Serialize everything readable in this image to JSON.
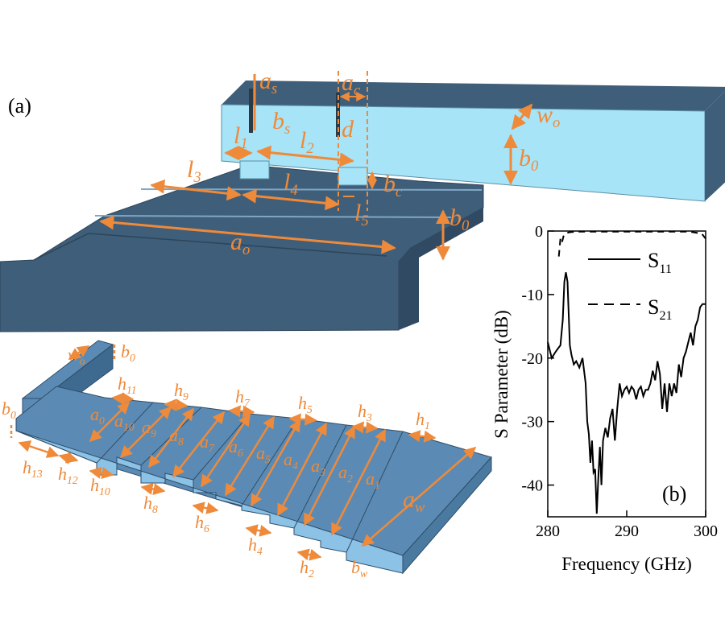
{
  "panels": {
    "a_label": "(a)",
    "b_label": "(b)"
  },
  "colors": {
    "dark_block": "#3f5e7a",
    "light_block": "#a7e4f7",
    "mid_block": "#5b8bb4",
    "dimension": "#ee8a3a"
  },
  "upper_labels": [
    {
      "base": "a",
      "sub": "s"
    },
    {
      "base": "b",
      "sub": "s"
    },
    {
      "base": "a",
      "sub": "c"
    },
    {
      "base": "w",
      "sub": "o"
    },
    {
      "base": "b",
      "sub": "0"
    },
    {
      "base": "d",
      "sub": ""
    },
    {
      "base": "l",
      "sub": "1"
    },
    {
      "base": "l",
      "sub": "2"
    },
    {
      "base": "l",
      "sub": "3"
    },
    {
      "base": "l",
      "sub": "4"
    },
    {
      "base": "l",
      "sub": "5"
    },
    {
      "base": "b",
      "sub": "c"
    },
    {
      "base": "b",
      "sub": "0"
    },
    {
      "base": "a",
      "sub": "o"
    }
  ],
  "lower_labels": [
    {
      "base": "w",
      "sub": "o"
    },
    {
      "base": "b",
      "sub": "0"
    },
    {
      "base": "b",
      "sub": "0"
    },
    {
      "base": "h",
      "sub": "11"
    },
    {
      "base": "h",
      "sub": "9"
    },
    {
      "base": "h",
      "sub": "7"
    },
    {
      "base": "h",
      "sub": "5"
    },
    {
      "base": "h",
      "sub": "3"
    },
    {
      "base": "h",
      "sub": "1"
    },
    {
      "base": "a",
      "sub": "0"
    },
    {
      "base": "a",
      "sub": "10"
    },
    {
      "base": "a",
      "sub": "9"
    },
    {
      "base": "a",
      "sub": "8"
    },
    {
      "base": "a",
      "sub": "7"
    },
    {
      "base": "a",
      "sub": "6"
    },
    {
      "base": "a",
      "sub": "5"
    },
    {
      "base": "a",
      "sub": "4"
    },
    {
      "base": "a",
      "sub": "3"
    },
    {
      "base": "a",
      "sub": "2"
    },
    {
      "base": "a",
      "sub": "1"
    },
    {
      "base": "a",
      "sub": "w"
    },
    {
      "base": "h",
      "sub": "13"
    },
    {
      "base": "h",
      "sub": "12"
    },
    {
      "base": "h",
      "sub": "10"
    },
    {
      "base": "h",
      "sub": "8"
    },
    {
      "base": "h",
      "sub": "6"
    },
    {
      "base": "h",
      "sub": "4"
    },
    {
      "base": "h",
      "sub": "2"
    },
    {
      "base": "b",
      "sub": "w"
    }
  ],
  "chart_data": {
    "type": "line",
    "xlabel": "Frequency (GHz)",
    "ylabel": "S Parameter (dB)",
    "xlim": [
      280,
      300
    ],
    "ylim": [
      -45,
      0
    ],
    "xticks": [
      "280",
      "290",
      "300"
    ],
    "yticks": [
      "0",
      "-10",
      "-20",
      "-30",
      "-40"
    ],
    "legend_position": "top-right",
    "series": [
      {
        "name": "S11",
        "name_base": "S",
        "name_sub": "11",
        "style": "solid",
        "x": [
          280,
          280.5,
          281,
          281.3,
          281.6,
          281.9,
          282.1,
          282.3,
          282.5,
          282.8,
          283.0,
          283.3,
          283.6,
          284.0,
          284.4,
          284.8,
          285.0,
          285.2,
          285.4,
          285.6,
          285.8,
          286.0,
          286.2,
          286.4,
          286.6,
          286.8,
          287.0,
          287.3,
          287.6,
          287.9,
          288.2,
          288.5,
          288.8,
          289.1,
          289.4,
          289.7,
          290.0,
          290.3,
          290.6,
          290.9,
          291.2,
          291.5,
          291.8,
          292.1,
          292.4,
          292.7,
          293.0,
          293.3,
          293.6,
          293.9,
          294.2,
          294.5,
          294.8,
          295.1,
          295.4,
          295.7,
          296.0,
          296.3,
          296.6,
          296.9,
          297.2,
          297.5,
          297.8,
          298.1,
          298.4,
          298.7,
          299.0,
          299.3,
          299.6,
          300
        ],
        "y": [
          -17.5,
          -20,
          -19,
          -18.5,
          -18,
          -14,
          -8,
          -6.5,
          -8,
          -18,
          -19.5,
          -21,
          -20.5,
          -21.5,
          -20,
          -24,
          -30,
          -32,
          -36.5,
          -33,
          -38,
          -37.5,
          -44.5,
          -39,
          -34,
          -40,
          -33,
          -31,
          -32.5,
          -29.5,
          -28,
          -33,
          -28,
          -24,
          -26,
          -25,
          -24.5,
          -25.5,
          -24.5,
          -25,
          -26.5,
          -25,
          -24.5,
          -26,
          -25,
          -25,
          -24,
          -22,
          -23.5,
          -20.5,
          -22.5,
          -28,
          -24,
          -28.5,
          -24,
          -26,
          -24,
          -25.5,
          -21,
          -23,
          -20,
          -19,
          -17.5,
          -16,
          -18,
          -15,
          -14,
          -12,
          -11.5,
          -11.5
        ]
      },
      {
        "name": "S21",
        "name_base": "S",
        "name_sub": "21",
        "style": "dashed",
        "x": [
          281.4,
          281.6,
          281.8,
          282.0,
          282.2,
          282.4,
          282.7,
          283.0,
          284,
          286,
          288,
          290,
          292,
          294,
          296,
          298,
          299.5,
          300
        ],
        "y": [
          -4,
          -1.2,
          -1.8,
          -0.8,
          -0.4,
          -0.3,
          -0.2,
          -0.15,
          -0.1,
          -0.1,
          -0.1,
          -0.1,
          -0.1,
          -0.1,
          -0.1,
          -0.1,
          -0.4,
          -1.2
        ]
      }
    ]
  }
}
